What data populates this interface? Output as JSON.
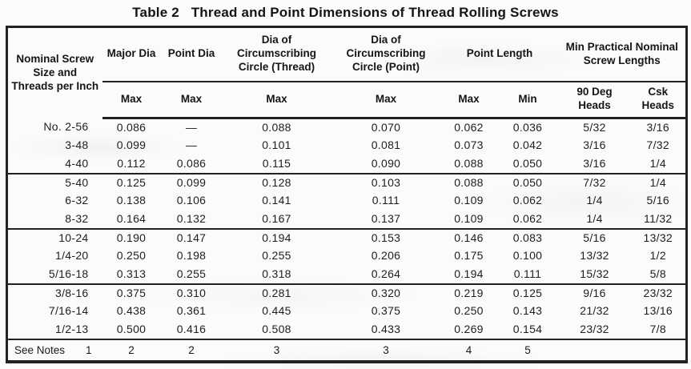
{
  "title": "Table 2   Thread and Point Dimensions of Thread Rolling Screws",
  "table": {
    "header": {
      "col1": "Nominal Screw Size and Threads per Inch",
      "spans": [
        {
          "label": "Major Dia"
        },
        {
          "label": "Point Dia"
        },
        {
          "label": "Dia of Circumscribing Circle (Thread)"
        },
        {
          "label": "Dia of Circumscribing Circle (Point)"
        },
        {
          "label": "Point Length"
        },
        {
          "label": "Min Practical Nominal Screw Lengths"
        }
      ],
      "subs": [
        "Max",
        "Max",
        "Max",
        "Max",
        "Max",
        "Min",
        "90 Deg Heads",
        "Csk Heads"
      ]
    },
    "columns_meaning": [
      "Nominal Screw Size and Threads per Inch",
      "Major Dia Max",
      "Point Dia Max",
      "Dia of Circumscribing Circle (Thread) Max",
      "Dia of Circumscribing Circle (Point) Max",
      "Point Length Max",
      "Point Length Min",
      "Min Practical Nominal Screw Lengths 90 Deg Heads",
      "Min Practical Nominal Screw Lengths Csk Heads"
    ],
    "groups": [
      {
        "rows": [
          [
            "No. 2-56",
            "0.086",
            "—",
            "0.088",
            "0.070",
            "0.062",
            "0.036",
            "5/32",
            "3/16"
          ],
          [
            "3-48",
            "0.099",
            "—",
            "0.101",
            "0.081",
            "0.073",
            "0.042",
            "3/16",
            "7/32"
          ],
          [
            "4-40",
            "0.112",
            "0.086",
            "0.115",
            "0.090",
            "0.088",
            "0.050",
            "3/16",
            "1/4"
          ]
        ]
      },
      {
        "rows": [
          [
            "5-40",
            "0.125",
            "0.099",
            "0.128",
            "0.103",
            "0.088",
            "0.050",
            "7/32",
            "1/4"
          ],
          [
            "6-32",
            "0.138",
            "0.106",
            "0.141",
            "0.111",
            "0.109",
            "0.062",
            "1/4",
            "5/16"
          ],
          [
            "8-32",
            "0.164",
            "0.132",
            "0.167",
            "0.137",
            "0.109",
            "0.062",
            "1/4",
            "11/32"
          ]
        ]
      },
      {
        "rows": [
          [
            "10-24",
            "0.190",
            "0.147",
            "0.194",
            "0.153",
            "0.146",
            "0.083",
            "5/16",
            "13/32"
          ],
          [
            "1/4-20",
            "0.250",
            "0.198",
            "0.255",
            "0.206",
            "0.175",
            "0.100",
            "13/32",
            "1/2"
          ],
          [
            "5/16-18",
            "0.313",
            "0.255",
            "0.318",
            "0.264",
            "0.194",
            "0.111",
            "15/32",
            "5/8"
          ]
        ]
      },
      {
        "rows": [
          [
            "3/8-16",
            "0.375",
            "0.310",
            "0.281",
            "0.320",
            "0.219",
            "0.125",
            "9/16",
            "23/32"
          ],
          [
            "7/16-14",
            "0.438",
            "0.361",
            "0.445",
            "0.375",
            "0.250",
            "0.143",
            "21/32",
            "13/16"
          ],
          [
            "1/2-13",
            "0.500",
            "0.416",
            "0.508",
            "0.433",
            "0.269",
            "0.154",
            "23/32",
            "7/8"
          ]
        ]
      }
    ],
    "notes": {
      "label": "See Notes",
      "col1_value": "1",
      "values": [
        "2",
        "2",
        "3",
        "3",
        "4",
        "5"
      ],
      "merged_last_cell": ""
    }
  }
}
